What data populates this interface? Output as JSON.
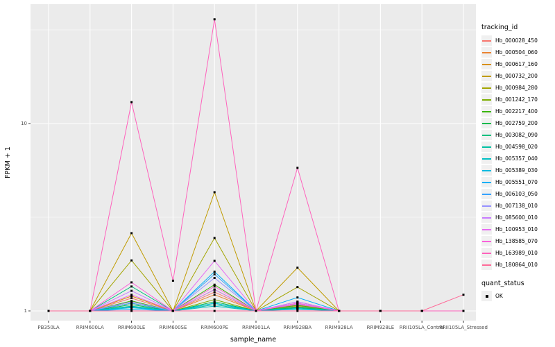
{
  "chart_data": {
    "type": "line",
    "title": "",
    "xlabel": "sample_name",
    "ylabel": "FPKM + 1",
    "y_scale": "log10",
    "y_tick_labels": [
      "1",
      "10"
    ],
    "y_tick_values": [
      1,
      10
    ],
    "y_minor_gridline_values": [
      3.1623,
      31.6228
    ],
    "ylim": [
      1,
      43
    ],
    "grid": "on",
    "panel_background": "#ebebeb",
    "gridline_color": "#ffffff",
    "legend_position": "right",
    "legend_title": "tracking_id",
    "point_legend_title": "quant_status",
    "point_legend_label": "OK",
    "point_marker": "black-square",
    "categories": [
      "PB350LA",
      "RRIM600LA",
      "RRIM600LE",
      "RRIM600SE",
      "RRIM600PE",
      "RRIM901LA",
      "RRIM928BA",
      "RRIM928LA",
      "RRIM928LE",
      "RRII105LA_Control",
      "RRII105LA_Stressed"
    ],
    "series": [
      {
        "name": "Hb_000028_450",
        "color": "#F8766D",
        "values": [
          1,
          1,
          1.17,
          1,
          1.26,
          1,
          1.08,
          1,
          1,
          1,
          1
        ]
      },
      {
        "name": "Hb_000504_060",
        "color": "#EA8331",
        "values": [
          1,
          1,
          1.12,
          1,
          1.22,
          1,
          1.06,
          1,
          1,
          1,
          1
        ]
      },
      {
        "name": "Hb_000617_160",
        "color": "#D89000",
        "values": [
          1,
          1,
          1.2,
          1,
          1.3,
          1,
          1.1,
          1,
          1,
          1,
          1
        ]
      },
      {
        "name": "Hb_000732_200",
        "color": "#C09B00",
        "values": [
          1,
          1,
          2.6,
          1,
          4.3,
          1,
          1.7,
          1,
          1,
          1,
          1
        ]
      },
      {
        "name": "Hb_000984_280",
        "color": "#A3A500",
        "values": [
          1,
          1,
          1.86,
          1,
          2.45,
          1,
          1.34,
          1,
          1,
          1,
          1
        ]
      },
      {
        "name": "Hb_001242_170",
        "color": "#7CAE00",
        "values": [
          1,
          1,
          1.1,
          1,
          1.15,
          1,
          1.05,
          1,
          1,
          1,
          1
        ]
      },
      {
        "name": "Hb_002217_400",
        "color": "#39B600",
        "values": [
          1,
          1,
          1.13,
          1,
          1.38,
          1,
          1.07,
          1,
          1,
          1,
          1
        ]
      },
      {
        "name": "Hb_002759_200",
        "color": "#00BB4E",
        "values": [
          1,
          1,
          1.08,
          1,
          1.12,
          1,
          1.04,
          1,
          1,
          1,
          1
        ]
      },
      {
        "name": "Hb_003082_090",
        "color": "#00BF7D",
        "values": [
          1,
          1,
          1.35,
          1,
          1.1,
          1,
          1.05,
          1,
          1,
          1,
          1
        ]
      },
      {
        "name": "Hb_004598_020",
        "color": "#00C1A3",
        "values": [
          1,
          1,
          1.06,
          1,
          1.08,
          1,
          1.03,
          1,
          1,
          1,
          1
        ]
      },
      {
        "name": "Hb_005357_040",
        "color": "#00BFC4",
        "values": [
          1,
          1,
          1.05,
          1,
          1.06,
          1,
          1.02,
          1,
          1,
          1,
          1
        ]
      },
      {
        "name": "Hb_005389_030",
        "color": "#00BAE0",
        "values": [
          1,
          1,
          1.04,
          1,
          1.1,
          1,
          1.03,
          1,
          1,
          1,
          1
        ]
      },
      {
        "name": "Hb_005551_070",
        "color": "#00B0F6",
        "values": [
          1,
          1,
          1.02,
          1,
          1.62,
          1,
          1.18,
          1,
          1,
          1,
          1
        ]
      },
      {
        "name": "Hb_006103_050",
        "color": "#35A2FF",
        "values": [
          1,
          1,
          1.1,
          1,
          1.57,
          1,
          1.12,
          1,
          1,
          1,
          1
        ]
      },
      {
        "name": "Hb_007138_010",
        "color": "#9590FF",
        "values": [
          1,
          1,
          1.12,
          1,
          1.5,
          1,
          1.1,
          1,
          1,
          1,
          1
        ]
      },
      {
        "name": "Hb_085600_010",
        "color": "#C77CFF",
        "values": [
          1,
          1,
          1.28,
          1,
          1.3,
          1,
          1.09,
          1,
          1,
          1,
          1
        ]
      },
      {
        "name": "Hb_100953_010",
        "color": "#E76BF3",
        "values": [
          1,
          1,
          1.22,
          1,
          1.85,
          1,
          1.12,
          1,
          1,
          1,
          1
        ]
      },
      {
        "name": "Hb_138585_070",
        "color": "#FA62DB",
        "values": [
          1,
          1,
          1.42,
          1,
          1.35,
          1,
          1.1,
          1,
          1,
          1,
          1
        ]
      },
      {
        "name": "Hb_163989_010",
        "color": "#FF62BC",
        "values": [
          1,
          1,
          13.0,
          1.45,
          36.0,
          1,
          5.8,
          1,
          1,
          1,
          1
        ]
      },
      {
        "name": "Hb_180864_010",
        "color": "#FF6A98",
        "values": [
          1,
          1,
          1,
          1,
          1,
          1,
          1,
          1,
          1,
          1,
          1.22
        ]
      }
    ]
  },
  "layout_colors": {
    "panel": "#ebebeb",
    "grid": "#ffffff",
    "tick_text": "#4d4d4d",
    "axis_text": "#000000",
    "marker": "#000000"
  }
}
